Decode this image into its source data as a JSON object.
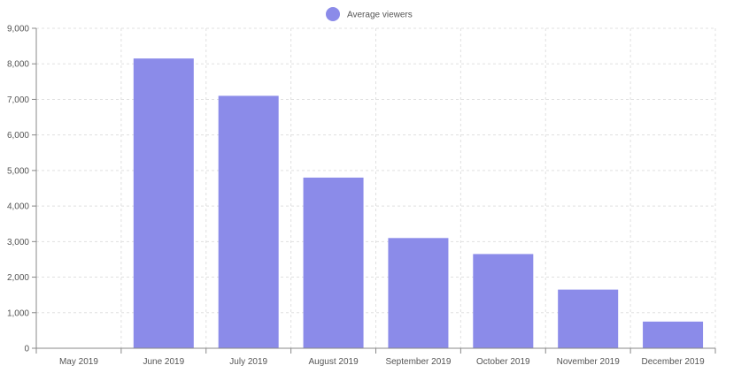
{
  "chart_data": {
    "type": "bar",
    "categories": [
      "May 2019",
      "June 2019",
      "July 2019",
      "August 2019",
      "September 2019",
      "October 2019",
      "November 2019",
      "December 2019"
    ],
    "series": [
      {
        "name": "Average viewers",
        "color": "#8b8be9",
        "values": [
          0,
          8150,
          7100,
          4800,
          3100,
          2650,
          1650,
          750
        ]
      }
    ],
    "title": "",
    "xlabel": "",
    "ylabel": "",
    "ylim": [
      0,
      9000
    ],
    "yticks": [
      "0",
      "1,000",
      "2,000",
      "3,000",
      "4,000",
      "5,000",
      "6,000",
      "7,000",
      "8,000",
      "9,000"
    ],
    "grid": true,
    "legend": "top-center"
  }
}
